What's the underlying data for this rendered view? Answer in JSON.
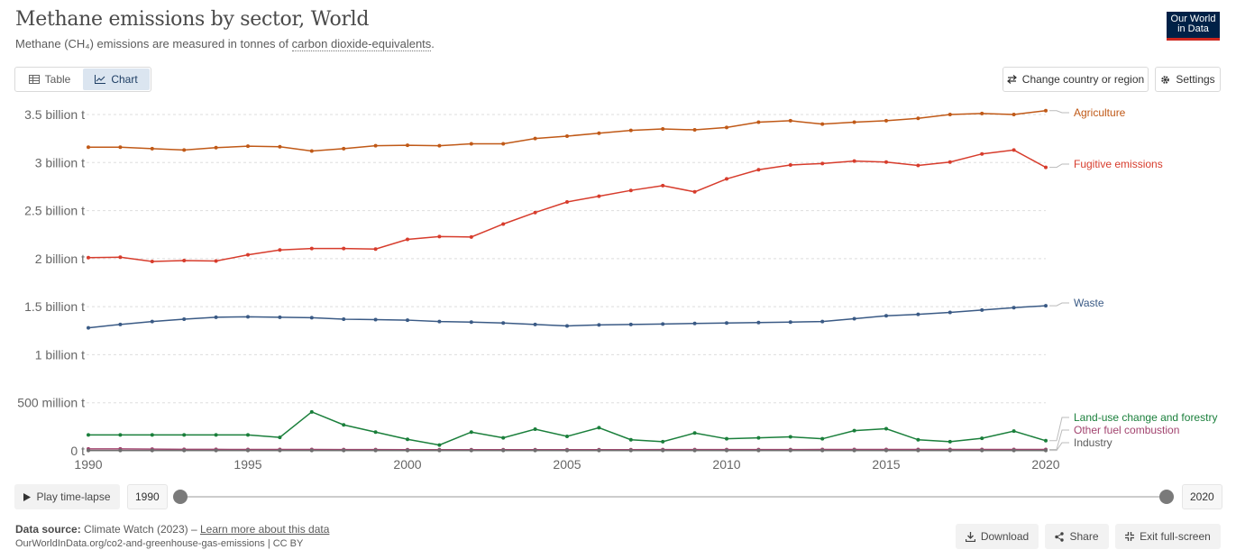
{
  "header": {
    "title": "Methane emissions by sector, World",
    "subtitle_prefix": "Methane (CH₄) emissions are measured in tonnes of ",
    "subtitle_link": "carbon dioxide-equivalents",
    "subtitle_suffix": ".",
    "logo_line1": "Our World",
    "logo_line2": "in Data"
  },
  "tabs": [
    {
      "label": "Table",
      "icon": "table-icon",
      "active": false
    },
    {
      "label": "Chart",
      "icon": "line-chart-icon",
      "active": true
    }
  ],
  "toolbar": {
    "change_country_label": "Change country or region",
    "settings_label": "Settings"
  },
  "timeline": {
    "play_label": "Play time-lapse",
    "start_year": "1990",
    "end_year": "2020"
  },
  "footer": {
    "source_label": "Data source:",
    "source_text": "Climate Watch (2023) – ",
    "learn_more": "Learn more about this data",
    "url_line": "OurWorldInData.org/co2-and-greenhouse-gas-emissions | CC BY",
    "download_label": "Download",
    "share_label": "Share",
    "exit_label": "Exit full-screen"
  },
  "chart_data": {
    "type": "line",
    "title": "Methane emissions by sector, World",
    "xlabel": "",
    "ylabel": "",
    "xlim": [
      1990,
      2020
    ],
    "ylim": [
      0,
      3500000000
    ],
    "yticks": [
      {
        "value": 0,
        "label": "0 t"
      },
      {
        "value": 500000000,
        "label": "500 million t"
      },
      {
        "value": 1000000000,
        "label": "1 billion t"
      },
      {
        "value": 1500000000,
        "label": "1.5 billion t"
      },
      {
        "value": 2000000000,
        "label": "2 billion t"
      },
      {
        "value": 2500000000,
        "label": "2.5 billion t"
      },
      {
        "value": 3000000000,
        "label": "3 billion t"
      },
      {
        "value": 3500000000,
        "label": "3.5 billion t"
      }
    ],
    "xticks": [
      "1990",
      "1995",
      "2000",
      "2005",
      "2010",
      "2015",
      "2020"
    ],
    "grid": true,
    "legend": "right-inline",
    "x": [
      1990,
      1991,
      1992,
      1993,
      1994,
      1995,
      1996,
      1997,
      1998,
      1999,
      2000,
      2001,
      2002,
      2003,
      2004,
      2005,
      2006,
      2007,
      2008,
      2009,
      2010,
      2011,
      2012,
      2013,
      2014,
      2015,
      2016,
      2017,
      2018,
      2019,
      2020
    ],
    "series": [
      {
        "name": "Agriculture",
        "color": "#c05917",
        "values": [
          3160000000,
          3160000000,
          3145000000,
          3130000000,
          3155000000,
          3170000000,
          3165000000,
          3120000000,
          3145000000,
          3175000000,
          3180000000,
          3175000000,
          3195000000,
          3195000000,
          3250000000,
          3275000000,
          3305000000,
          3335000000,
          3350000000,
          3340000000,
          3365000000,
          3420000000,
          3435000000,
          3400000000,
          3420000000,
          3435000000,
          3460000000,
          3500000000,
          3510000000,
          3500000000,
          3540000000
        ]
      },
      {
        "name": "Fugitive emissions",
        "color": "#d73c2c",
        "values": [
          2010000000,
          2015000000,
          1970000000,
          1980000000,
          1975000000,
          2040000000,
          2090000000,
          2105000000,
          2105000000,
          2100000000,
          2200000000,
          2230000000,
          2225000000,
          2360000000,
          2480000000,
          2590000000,
          2650000000,
          2710000000,
          2760000000,
          2695000000,
          2830000000,
          2925000000,
          2975000000,
          2990000000,
          3015000000,
          3005000000,
          2970000000,
          3005000000,
          3090000000,
          3130000000,
          2950000000
        ]
      },
      {
        "name": "Waste",
        "color": "#3a5a85",
        "values": [
          1280000000,
          1315000000,
          1345000000,
          1370000000,
          1390000000,
          1395000000,
          1390000000,
          1385000000,
          1370000000,
          1365000000,
          1360000000,
          1345000000,
          1340000000,
          1330000000,
          1315000000,
          1300000000,
          1310000000,
          1315000000,
          1320000000,
          1325000000,
          1330000000,
          1335000000,
          1340000000,
          1345000000,
          1375000000,
          1405000000,
          1420000000,
          1440000000,
          1465000000,
          1490000000,
          1510000000
        ]
      },
      {
        "name": "Land-use change and forestry",
        "color": "#1a7f3b",
        "values": [
          165000000,
          165000000,
          165000000,
          165000000,
          165000000,
          165000000,
          140000000,
          405000000,
          270000000,
          195000000,
          120000000,
          60000000,
          195000000,
          135000000,
          225000000,
          150000000,
          240000000,
          115000000,
          95000000,
          185000000,
          125000000,
          135000000,
          145000000,
          125000000,
          210000000,
          230000000,
          115000000,
          95000000,
          130000000,
          205000000,
          105000000
        ]
      },
      {
        "name": "Other fuel combustion",
        "color": "#a2446f",
        "values": [
          20000000,
          20000000,
          18000000,
          15000000,
          15000000,
          14000000,
          14000000,
          14000000,
          13000000,
          13000000,
          12000000,
          12000000,
          12000000,
          12000000,
          12000000,
          12000000,
          12000000,
          12000000,
          13000000,
          13000000,
          13000000,
          13000000,
          13000000,
          14000000,
          14000000,
          14000000,
          14000000,
          14000000,
          14000000,
          14000000,
          14000000
        ]
      },
      {
        "name": "Industry",
        "color": "#6d6d6d",
        "values": [
          4000000,
          4000000,
          4000000,
          4000000,
          4000000,
          4000000,
          4000000,
          4000000,
          4000000,
          4000000,
          4000000,
          4000000,
          4000000,
          4000000,
          4000000,
          4000000,
          4000000,
          4000000,
          4000000,
          4000000,
          4000000,
          4000000,
          4000000,
          4000000,
          4000000,
          4000000,
          4000000,
          4000000,
          4000000,
          4000000,
          4000000
        ]
      }
    ]
  }
}
